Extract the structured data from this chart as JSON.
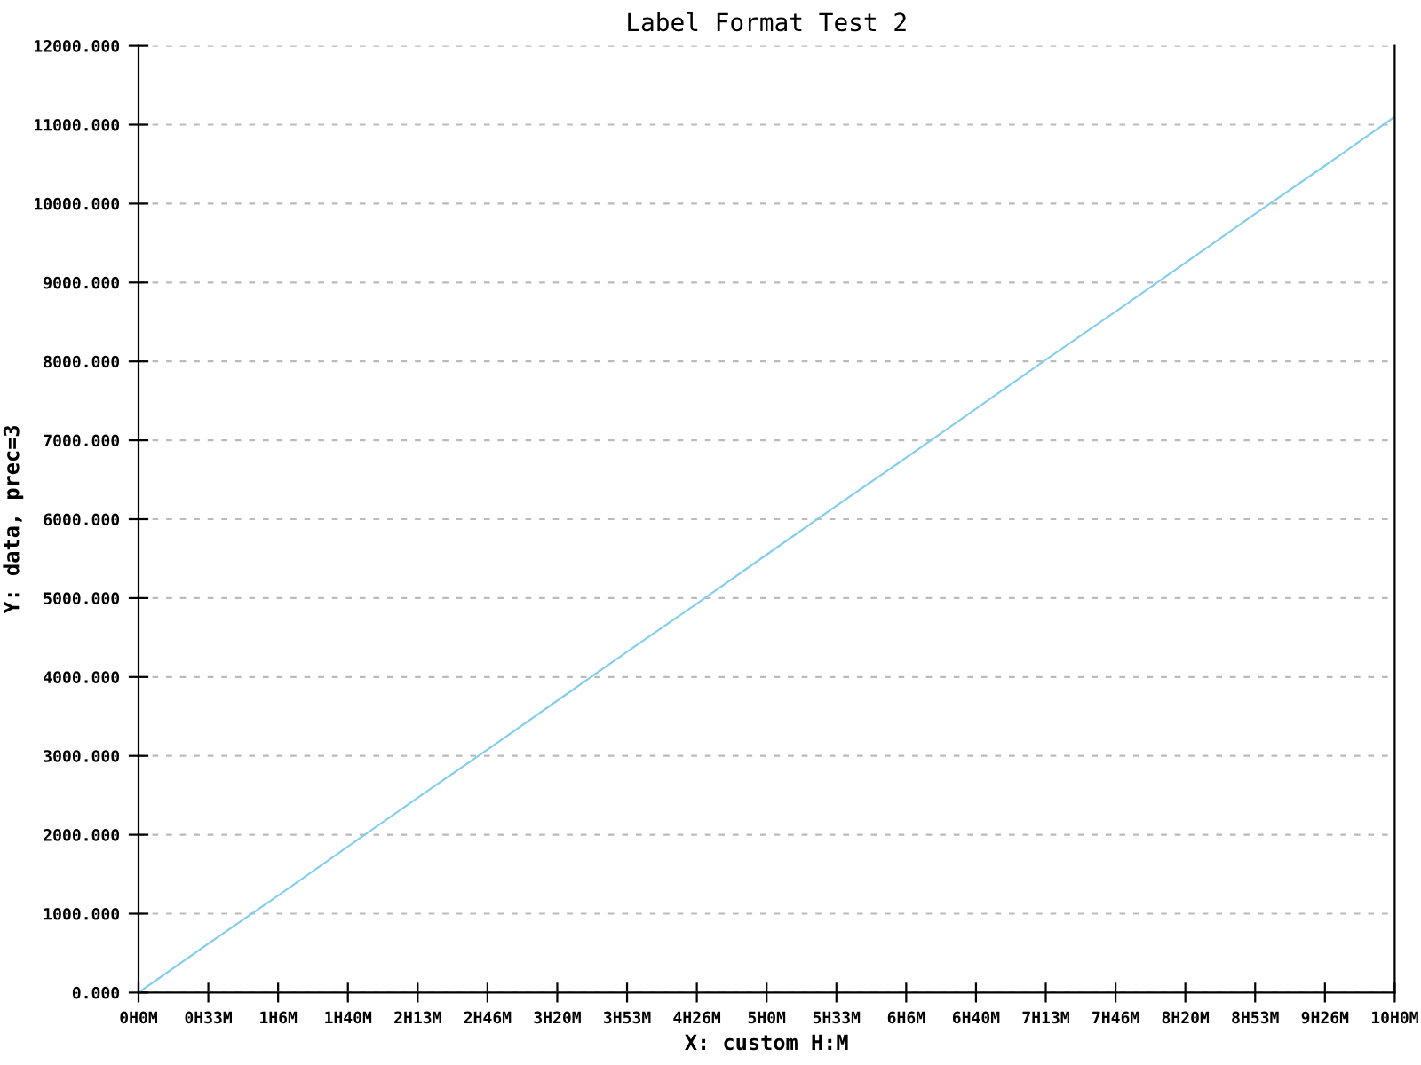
{
  "chart_data": {
    "type": "line",
    "title": "Label Format Test 2",
    "xlabel": "X: custom H:M",
    "ylabel": "Y: data, prec=3",
    "categories": [
      "0H0M",
      "0H33M",
      "1H6M",
      "1H40M",
      "2H13M",
      "2H46M",
      "3H20M",
      "3H53M",
      "4H26M",
      "5H0M",
      "5H33M",
      "6H6M",
      "6H40M",
      "7H13M",
      "7H46M",
      "8H20M",
      "8H53M",
      "9H26M",
      "10H0M"
    ],
    "series": [
      {
        "color": "#87ceeb",
        "values": [
          0,
          620,
          1230,
          1850,
          2470,
          3080,
          3700,
          4320,
          4930,
          5550,
          6170,
          6780,
          7400,
          8020,
          8630,
          9250,
          9870,
          10480,
          11100
        ]
      }
    ],
    "ylim": [
      0,
      12000
    ],
    "yticks": [
      {
        "value": 0,
        "label": "0.000"
      },
      {
        "value": 1000,
        "label": "1000.000"
      },
      {
        "value": 2000,
        "label": "2000.000"
      },
      {
        "value": 3000,
        "label": "3000.000"
      },
      {
        "value": 4000,
        "label": "4000.000"
      },
      {
        "value": 5000,
        "label": "5000.000"
      },
      {
        "value": 6000,
        "label": "6000.000"
      },
      {
        "value": 7000,
        "label": "7000.000"
      },
      {
        "value": 8000,
        "label": "8000.000"
      },
      {
        "value": 9000,
        "label": "9000.000"
      },
      {
        "value": 10000,
        "label": "10000.000"
      },
      {
        "value": 11000,
        "label": "11000.000"
      },
      {
        "value": 12000,
        "label": "12000.000"
      }
    ],
    "grid": "y",
    "marker": "none",
    "line_style": "solid"
  }
}
